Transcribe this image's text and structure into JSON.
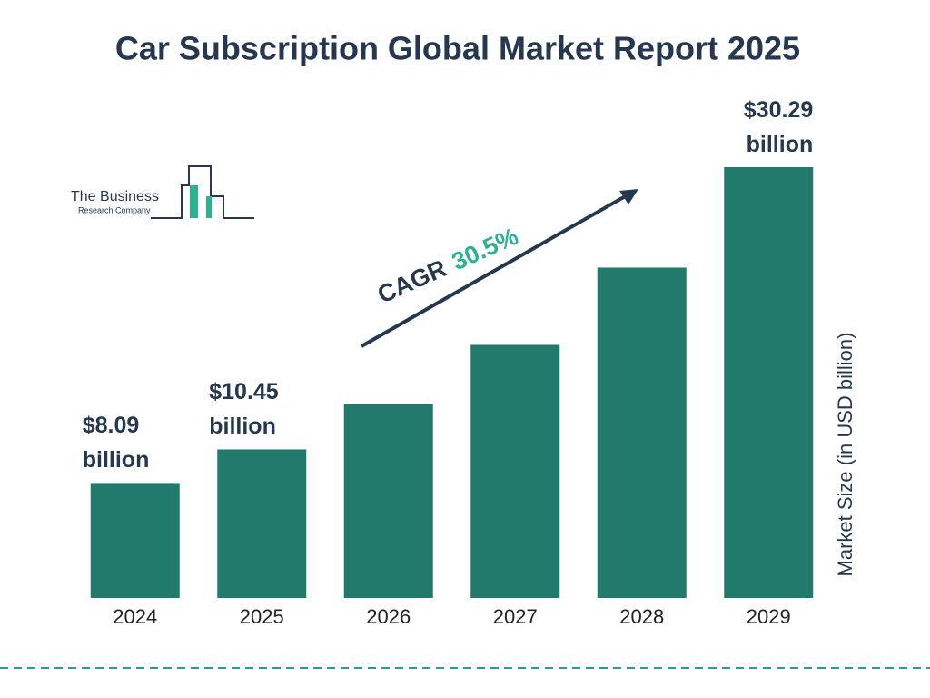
{
  "chart_data": {
    "type": "bar",
    "title": "Car Subscription Global Market Report 2025",
    "categories": [
      "2024",
      "2025",
      "2026",
      "2027",
      "2028",
      "2029"
    ],
    "values": [
      8.09,
      10.45,
      13.64,
      17.8,
      23.23,
      30.29
    ],
    "value_labels": [
      "$8.09 billion",
      "$10.45 billion",
      null,
      null,
      null,
      "$30.29 billion"
    ],
    "color": "#217a6b",
    "y_label": "Market Size (in USD billion)",
    "annotation": {
      "label": "CAGR",
      "value": "30.5%"
    },
    "logo": {
      "line1": "The Business",
      "line2": "Research Company"
    }
  }
}
